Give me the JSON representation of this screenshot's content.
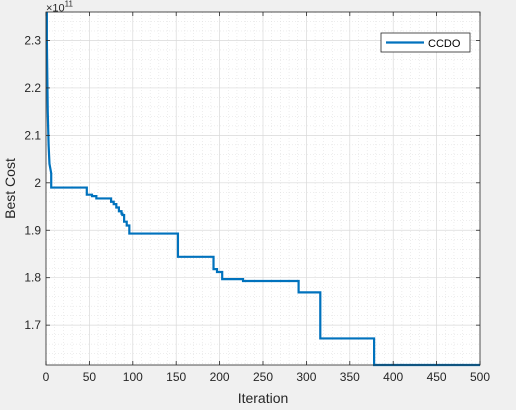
{
  "chart_data": {
    "type": "line",
    "title": "",
    "xlabel": "Iteration",
    "ylabel": "Best Cost",
    "y_exponent_label": "×10",
    "y_exponent_power": "11",
    "xlim": [
      0,
      500
    ],
    "ylim": [
      1.616,
      2.36
    ],
    "grid": true,
    "minor_grid": true,
    "legend_placement": "top-right",
    "x_ticks": [
      0,
      50,
      100,
      150,
      200,
      250,
      300,
      350,
      400,
      450,
      500
    ],
    "x_tick_labels": [
      "0",
      "50",
      "100",
      "150",
      "200",
      "250",
      "300",
      "350",
      "400",
      "450",
      "500"
    ],
    "y_ticks": [
      1.7,
      1.8,
      1.9,
      2.0,
      2.1,
      2.2,
      2.3
    ],
    "y_tick_labels": [
      "1.7",
      "1.8",
      "1.9",
      "2",
      "2.1",
      "2.2",
      "2.3"
    ],
    "series": [
      {
        "name": "CCDO",
        "color": "#0072bd",
        "x": [
          1,
          1,
          2,
          3,
          4,
          5,
          6,
          6,
          47,
          47,
          53,
          53,
          58,
          58,
          75,
          75,
          78,
          78,
          81,
          81,
          84,
          84,
          87,
          87,
          88,
          88,
          90,
          90,
          93,
          93,
          96,
          96,
          152,
          152,
          193,
          193,
          197,
          197,
          203,
          203,
          227,
          227,
          291,
          291,
          316,
          316,
          378,
          378,
          500
        ],
        "y": [
          2.36,
          2.3,
          2.15,
          2.08,
          2.04,
          2.03,
          2.02,
          1.99,
          1.99,
          1.975,
          1.975,
          1.972,
          1.972,
          1.967,
          1.967,
          1.96,
          1.96,
          1.955,
          1.955,
          1.948,
          1.948,
          1.94,
          1.94,
          1.935,
          1.935,
          1.932,
          1.932,
          1.918,
          1.918,
          1.91,
          1.91,
          1.893,
          1.893,
          1.844,
          1.844,
          1.818,
          1.818,
          1.812,
          1.812,
          1.797,
          1.797,
          1.793,
          1.793,
          1.769,
          1.769,
          1.672,
          1.672,
          1.616,
          1.616
        ]
      }
    ]
  }
}
